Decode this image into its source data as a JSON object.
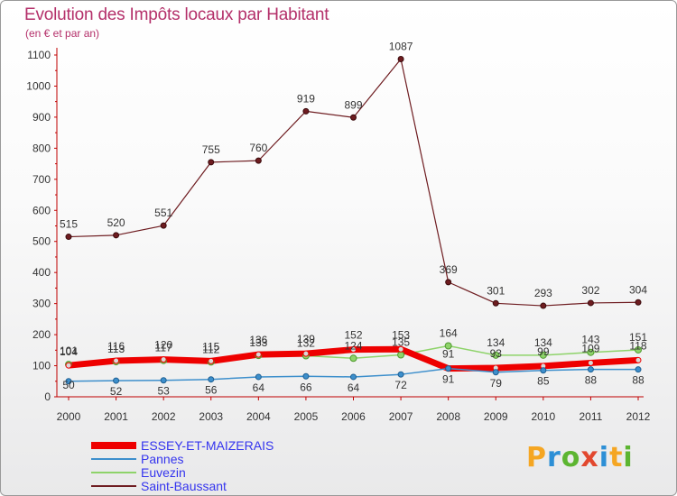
{
  "header": {
    "title": "Evolution des Impôts locaux par Habitant",
    "subtitle": "(en € et par an)"
  },
  "logo": {
    "text": "Proxiti",
    "letter_colors": [
      "#f5a623",
      "#2d8fd6",
      "#5cb531",
      "#e2482f",
      "#2d8fd6",
      "#f5a623",
      "#5cb531"
    ]
  },
  "chart_data": {
    "type": "line",
    "title": "Evolution des Impôts locaux par Habitant",
    "subtitle": "(en € et par an)",
    "xlabel": "",
    "ylabel": "",
    "ylim": [
      0,
      1100
    ],
    "yticks": [
      0,
      100,
      200,
      300,
      400,
      500,
      600,
      700,
      800,
      900,
      1000,
      1100
    ],
    "grid": false,
    "legend_position": "bottom-left",
    "categories": [
      "2000",
      "2001",
      "2002",
      "2003",
      "2004",
      "2005",
      "2006",
      "2007",
      "2008",
      "2009",
      "2010",
      "2011",
      "2012"
    ],
    "series": [
      {
        "name": "Saint-Baussant",
        "color": "#6e1c20",
        "values": [
          515,
          520,
          551,
          755,
          760,
          919,
          899,
          1087,
          369,
          301,
          293,
          302,
          304
        ],
        "labels": [
          "515",
          "520",
          "551",
          "755",
          "760",
          "919",
          "899",
          "1087",
          "369",
          "301",
          "293",
          "302",
          "304"
        ]
      },
      {
        "name": "Euvezin",
        "color": "#8ed36a",
        "values": [
          104,
          113,
          117,
          112,
          133,
          132,
          124,
          135,
          164,
          134,
          134,
          143,
          151
        ],
        "labels": [
          "104",
          "113",
          "117",
          "112",
          "133",
          "132",
          "124",
          "135",
          "164",
          "134",
          "134",
          "143",
          "151"
        ]
      },
      {
        "name": "ESSEY-ET-MAIZERAIS",
        "color": "#ee0000",
        "values": [
          101,
          116,
          120,
          115,
          136,
          139,
          152,
          153,
          91,
          93,
          99,
          109,
          118
        ],
        "labels": [
          "101",
          "116",
          "120",
          "115",
          "136",
          "139",
          "152",
          "153",
          "91",
          "93",
          "99",
          "109",
          "118"
        ]
      },
      {
        "name": "Pannes",
        "color": "#3d8fcc",
        "values": [
          50,
          52,
          53,
          56,
          64,
          66,
          64,
          72,
          91,
          79,
          85,
          88,
          88
        ],
        "labels": [
          "50",
          "52",
          "53",
          "56",
          "64",
          "66",
          "64",
          "72",
          "91",
          "79",
          "85",
          "88",
          "88"
        ]
      }
    ],
    "legend": [
      "ESSEY-ET-MAIZERAIS",
      "Pannes",
      "Euvezin",
      "Saint-Baussant"
    ]
  }
}
